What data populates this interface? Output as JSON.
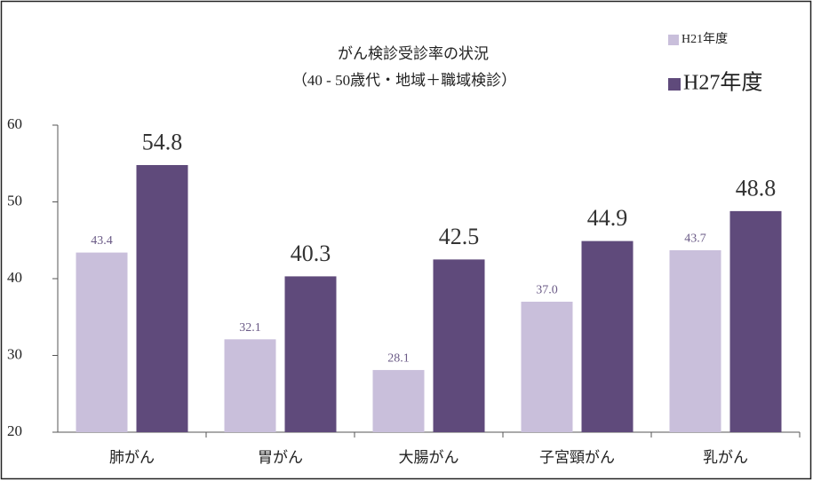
{
  "chart_data": {
    "type": "bar",
    "title": "がん検診受診率の状況",
    "subtitle": "（40 - 50歳代・地域＋職域検診）",
    "categories": [
      "肺がん",
      "胃がん",
      "大腸がん",
      "子宮頸がん",
      "乳がん"
    ],
    "series": [
      {
        "name": "H21年度",
        "color": "#c9bfdb",
        "values": [
          43.4,
          32.1,
          28.1,
          37.0,
          43.7
        ],
        "value_labels": [
          "43.4",
          "32.1",
          "28.1",
          "37.0",
          "43.7"
        ]
      },
      {
        "name": "H27年度",
        "color": "#5f4a7b",
        "values": [
          54.8,
          40.3,
          42.5,
          44.9,
          48.8
        ],
        "value_labels": [
          "54.8",
          "40.3",
          "42.5",
          "44.9",
          "48.8"
        ]
      }
    ],
    "ylim": [
      20,
      60
    ],
    "yticks": [
      20,
      30,
      40,
      50,
      60
    ],
    "grid": false,
    "legend": "top-right"
  }
}
